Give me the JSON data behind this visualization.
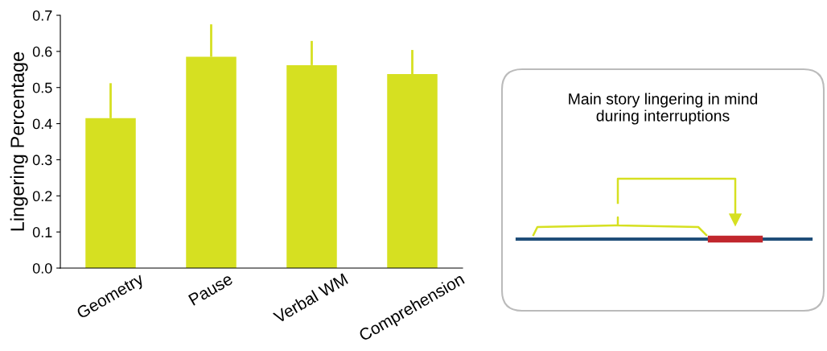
{
  "chart_data": {
    "type": "bar",
    "ylabel": "Lingering Percentage",
    "categories": [
      "Geometry",
      "Pause",
      "Verbal WM",
      "Comprehension"
    ],
    "values": [
      0.415,
      0.585,
      0.562,
      0.537
    ],
    "errors": [
      0.097,
      0.09,
      0.067,
      0.067
    ],
    "color": "#d6e021",
    "ylim": [
      0,
      0.7
    ],
    "yticks": [
      {
        "value": 0,
        "label": "0.0"
      },
      0.1,
      0.2,
      0.3,
      0.4,
      0.5,
      0.6,
      0.7
    ],
    "grid": false,
    "legend": false,
    "annotations": [
      "Main story lingering in mind\nduring interruptions"
    ]
  }
}
